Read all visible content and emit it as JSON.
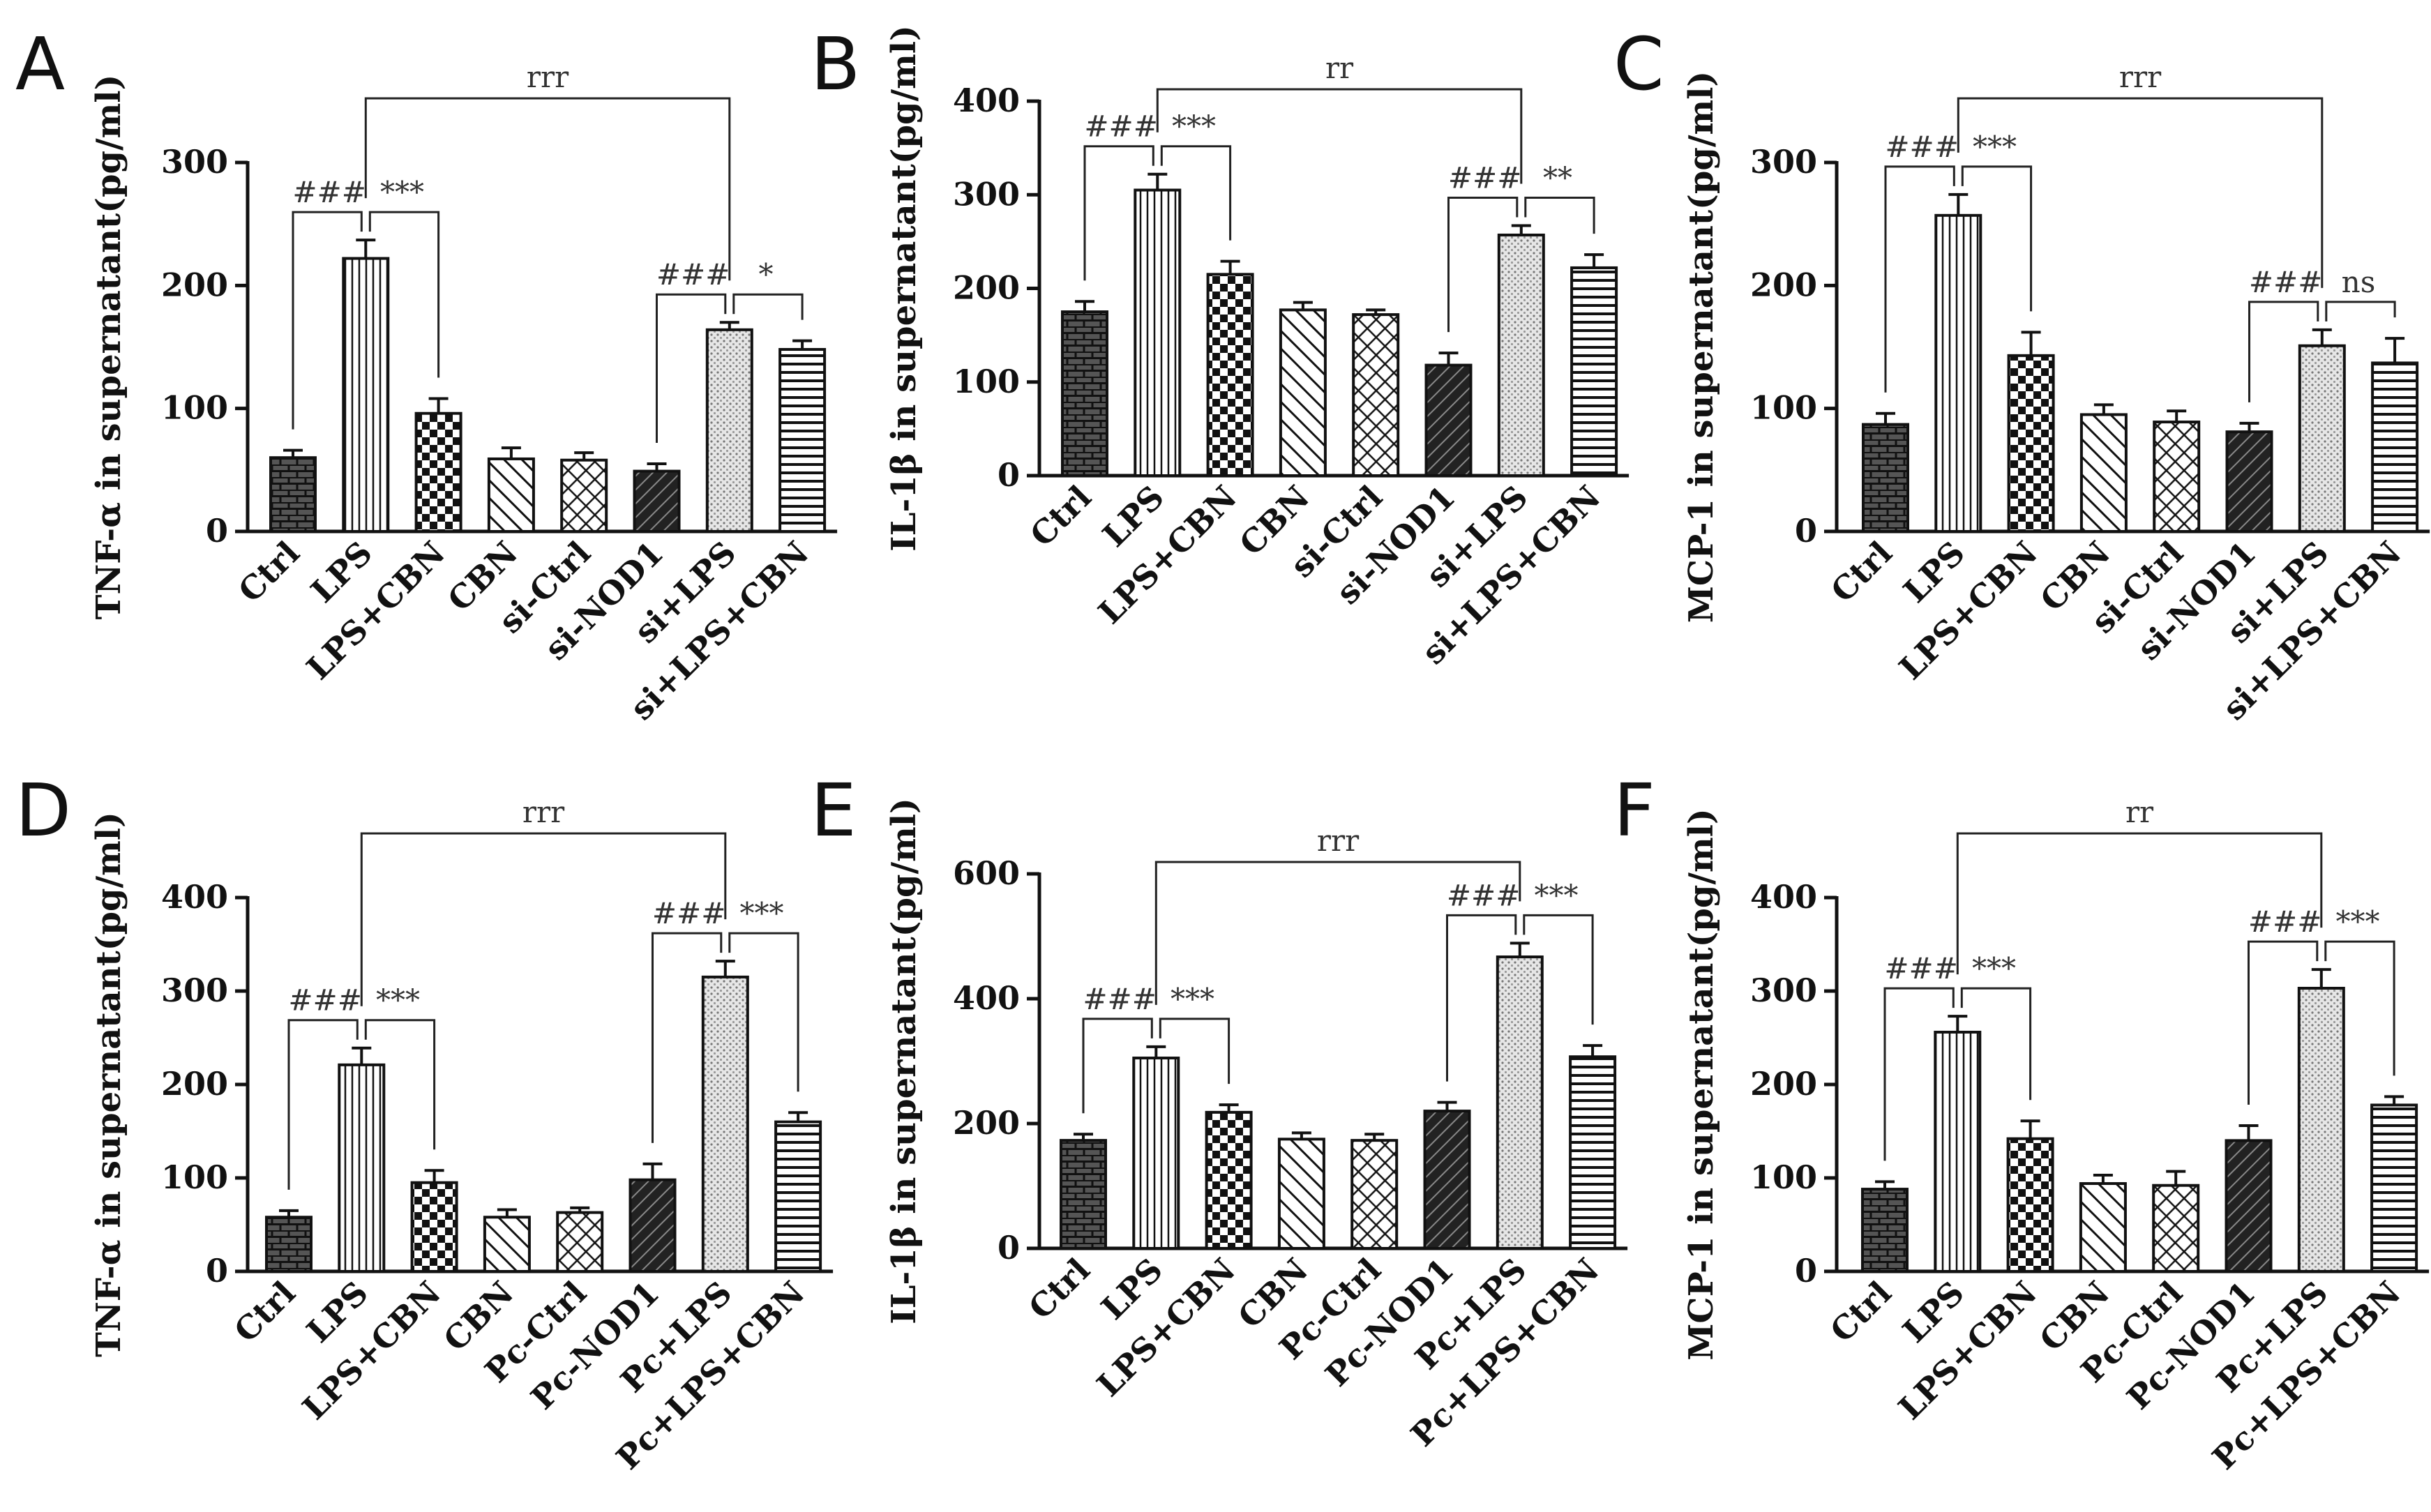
{
  "chart_data": [
    {
      "type": "bar",
      "panel": "A",
      "ylabel": "TNF-α in supernatant(pg/ml)",
      "ylim": [
        0,
        300
      ],
      "yticks": [
        0,
        100,
        200,
        300
      ],
      "categories": [
        "Ctrl",
        "LPS",
        "LPS+CBN",
        "CBN",
        "si-Ctrl",
        "si-NOD1",
        "si+LPS",
        "si+LPS+CBN"
      ],
      "patterns": [
        "brick",
        "vert",
        "check",
        "diagR",
        "cross",
        "dark",
        "dots",
        "horiz"
      ],
      "values": [
        60,
        222,
        96,
        59,
        58,
        49,
        164,
        148
      ],
      "errors": [
        6,
        15,
        12,
        9,
        6,
        6,
        6,
        7
      ],
      "brackets": [
        {
          "center": 1,
          "left": 0,
          "right": 2,
          "left_label": "###",
          "right_label": "***",
          "level": 0
        },
        {
          "center": 6,
          "left": 5,
          "right": 7,
          "left_label": "###",
          "right_label": "*",
          "level": 0
        },
        {
          "from": 1,
          "to": 6,
          "label": "rrr",
          "level": 1
        }
      ]
    },
    {
      "type": "bar",
      "panel": "B",
      "ylabel": "IL-1β in supernatant(pg/ml)",
      "ylim": [
        0,
        400
      ],
      "yticks": [
        0,
        100,
        200,
        300,
        400
      ],
      "categories": [
        "Ctrl",
        "LPS",
        "LPS+CBN",
        "CBN",
        "si-Ctrl",
        "si-NOD1",
        "si+LPS",
        "si+LPS+CBN"
      ],
      "patterns": [
        "brick",
        "vert",
        "check",
        "diagR",
        "cross",
        "dark",
        "dots",
        "horiz"
      ],
      "values": [
        175,
        305,
        215,
        177,
        172,
        118,
        257,
        222
      ],
      "errors": [
        11,
        17,
        14,
        8,
        5,
        13,
        10,
        14
      ],
      "brackets": [
        {
          "center": 1,
          "left": 0,
          "right": 2,
          "left_label": "###",
          "right_label": "***",
          "level": 0
        },
        {
          "center": 6,
          "left": 5,
          "right": 7,
          "left_label": "###",
          "right_label": "**",
          "level": 0
        },
        {
          "from": 1,
          "to": 6,
          "label": "rr",
          "level": 1
        }
      ]
    },
    {
      "type": "bar",
      "panel": "C",
      "ylabel": "MCP-1 in supernatant(pg/ml)",
      "ylim": [
        0,
        300
      ],
      "yticks": [
        0,
        100,
        200,
        300
      ],
      "categories": [
        "Ctrl",
        "LPS",
        "LPS+CBN",
        "CBN",
        "si-Ctrl",
        "si-NOD1",
        "si+LPS",
        "si+LPS+CBN"
      ],
      "patterns": [
        "brick",
        "vert",
        "check",
        "diagR",
        "cross",
        "dark",
        "dots",
        "horiz"
      ],
      "values": [
        87,
        257,
        143,
        95,
        89,
        81,
        151,
        137
      ],
      "errors": [
        9,
        17,
        19,
        8,
        9,
        7,
        13,
        20
      ],
      "brackets": [
        {
          "center": 1,
          "left": 0,
          "right": 2,
          "left_label": "###",
          "right_label": "***",
          "level": 0
        },
        {
          "center": 6,
          "left": 5,
          "right": 7,
          "left_label": "###",
          "right_label": "ns",
          "level": 0
        },
        {
          "from": 1,
          "to": 6,
          "label": "rrr",
          "level": 1
        }
      ]
    },
    {
      "type": "bar",
      "panel": "D",
      "ylabel": "TNF-α in supernatant(pg/ml)",
      "ylim": [
        0,
        400
      ],
      "yticks": [
        0,
        100,
        200,
        300,
        400
      ],
      "categories": [
        "Ctrl",
        "LPS",
        "LPS+CBN",
        "CBN",
        "Pc-Ctrl",
        "Pc-NOD1",
        "Pc+LPS",
        "Pc+LPS+CBN"
      ],
      "patterns": [
        "brick",
        "vert",
        "check",
        "diagR",
        "cross",
        "dark",
        "dots",
        "horiz"
      ],
      "values": [
        58,
        221,
        95,
        58,
        63,
        98,
        315,
        160
      ],
      "errors": [
        7,
        18,
        13,
        8,
        5,
        17,
        17,
        10
      ],
      "brackets": [
        {
          "center": 1,
          "left": 0,
          "right": 2,
          "left_label": "###",
          "right_label": "***",
          "level": 0
        },
        {
          "center": 6,
          "left": 5,
          "right": 7,
          "left_label": "###",
          "right_label": "***",
          "level": 0
        },
        {
          "from": 1,
          "to": 6,
          "label": "rrr",
          "level": 1
        }
      ]
    },
    {
      "type": "bar",
      "panel": "E",
      "ylabel": "IL-1β in supernatant(pg/ml)",
      "ylim": [
        0,
        600
      ],
      "yticks": [
        0,
        200,
        400,
        600
      ],
      "categories": [
        "Ctrl",
        "LPS",
        "LPS+CBN",
        "CBN",
        "Pc-Ctrl",
        "Pc-NOD1",
        "Pc+LPS",
        "Pc+LPS+CBN"
      ],
      "patterns": [
        "brick",
        "vert",
        "check",
        "diagR",
        "cross",
        "dark",
        "dots",
        "horiz"
      ],
      "values": [
        173,
        305,
        218,
        175,
        173,
        220,
        467,
        307
      ],
      "errors": [
        10,
        18,
        12,
        10,
        10,
        14,
        22,
        18
      ],
      "brackets": [
        {
          "center": 1,
          "left": 0,
          "right": 2,
          "left_label": "###",
          "right_label": "***",
          "level": 0
        },
        {
          "center": 6,
          "left": 5,
          "right": 7,
          "left_label": "###",
          "right_label": "***",
          "level": 0
        },
        {
          "from": 1,
          "to": 6,
          "label": "rrr",
          "level": 1
        }
      ]
    },
    {
      "type": "bar",
      "panel": "F",
      "ylabel": "MCP-1 in supernatant(pg/ml)",
      "ylim": [
        0,
        400
      ],
      "yticks": [
        0,
        100,
        200,
        300,
        400
      ],
      "categories": [
        "Ctrl",
        "LPS",
        "LPS+CBN",
        "CBN",
        "Pc-Ctrl",
        "Pc-NOD1",
        "Pc+LPS",
        "Pc+LPS+CBN"
      ],
      "patterns": [
        "brick",
        "vert",
        "check",
        "diagR",
        "cross",
        "dark",
        "dots",
        "horiz"
      ],
      "values": [
        88,
        256,
        142,
        94,
        92,
        140,
        303,
        178
      ],
      "errors": [
        8,
        17,
        19,
        9,
        15,
        16,
        20,
        9
      ],
      "brackets": [
        {
          "center": 1,
          "left": 0,
          "right": 2,
          "left_label": "###",
          "right_label": "***",
          "level": 0
        },
        {
          "center": 6,
          "left": 5,
          "right": 7,
          "left_label": "###",
          "right_label": "***",
          "level": 0
        },
        {
          "from": 1,
          "to": 6,
          "label": "rr",
          "level": 1
        }
      ]
    }
  ]
}
